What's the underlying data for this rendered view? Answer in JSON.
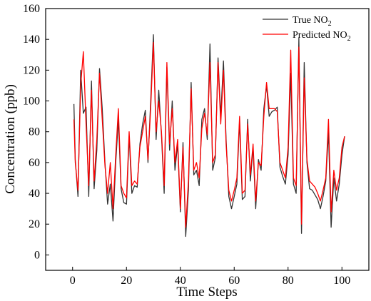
{
  "chart_data": {
    "type": "line",
    "xlabel": "Time Steps",
    "ylabel": "Concentration (ppb)",
    "xlim": [
      -10,
      110
    ],
    "ylim": [
      -10,
      160
    ],
    "xticks": [
      0,
      20,
      40,
      60,
      80,
      100
    ],
    "yticks": [
      0,
      20,
      40,
      60,
      80,
      100,
      120,
      140,
      160
    ],
    "grid": false,
    "legend_position": "top-right",
    "series": [
      {
        "name": "True NO",
        "name_sub": "2",
        "color": "#333333",
        "x": [
          0.5,
          1,
          2,
          3,
          4,
          5,
          6,
          7,
          8,
          9,
          10,
          11,
          12,
          13,
          14,
          15,
          16,
          17,
          18,
          19,
          20,
          21,
          22,
          23,
          24,
          25,
          26,
          27,
          28,
          29,
          30,
          31,
          32,
          33,
          34,
          35,
          36,
          37,
          38,
          39,
          40,
          41,
          42,
          43,
          44,
          45,
          46,
          47,
          48,
          49,
          50,
          51,
          52,
          53,
          54,
          55,
          56,
          57,
          58,
          59,
          60,
          61,
          62,
          63,
          64,
          65,
          66,
          67,
          68,
          69,
          70,
          71,
          72,
          73,
          74,
          75,
          76,
          77,
          78,
          79,
          80,
          81,
          82,
          83,
          84,
          85,
          86,
          87,
          88,
          89,
          90,
          91,
          92,
          93,
          94,
          95,
          96,
          97,
          98,
          99,
          100,
          101
        ],
        "y": [
          98,
          62,
          38,
          120,
          92,
          96,
          38,
          113,
          43,
          68,
          121,
          95,
          60,
          33,
          46,
          22,
          60,
          88,
          43,
          34,
          33,
          77,
          40,
          45,
          44,
          72,
          85,
          94,
          60,
          100,
          143,
          75,
          107,
          78,
          40,
          122,
          68,
          100,
          55,
          72,
          28,
          73,
          12,
          42,
          112,
          52,
          55,
          45,
          88,
          95,
          75,
          137,
          55,
          63,
          128,
          90,
          126,
          75,
          38,
          30,
          38,
          46,
          87,
          36,
          38,
          88,
          48,
          70,
          30,
          62,
          55,
          95,
          110,
          90,
          93,
          94,
          96,
          57,
          51,
          46,
          65,
          118,
          46,
          40,
          141,
          14,
          125,
          60,
          43,
          42,
          39,
          36,
          30,
          38,
          48,
          80,
          18,
          50,
          35,
          46,
          65,
          77
        ],
        "values_approx": true
      },
      {
        "name": "Predicted NO",
        "name_sub": "2",
        "color": "#ff0000",
        "x": [
          0.5,
          1,
          2,
          3,
          4,
          5,
          6,
          7,
          8,
          9,
          10,
          11,
          12,
          13,
          14,
          15,
          16,
          17,
          18,
          19,
          20,
          21,
          22,
          23,
          24,
          25,
          26,
          27,
          28,
          29,
          30,
          31,
          32,
          33,
          34,
          35,
          36,
          37,
          38,
          39,
          40,
          41,
          42,
          43,
          44,
          45,
          46,
          47,
          48,
          49,
          50,
          51,
          52,
          53,
          54,
          55,
          56,
          57,
          58,
          59,
          60,
          61,
          62,
          63,
          64,
          65,
          66,
          67,
          68,
          69,
          70,
          71,
          72,
          73,
          74,
          75,
          76,
          77,
          78,
          79,
          80,
          81,
          82,
          83,
          84,
          85,
          86,
          87,
          88,
          89,
          90,
          91,
          92,
          93,
          94,
          95,
          96,
          97,
          98,
          99,
          100,
          101
        ],
        "y": [
          88,
          60,
          42,
          110,
          132,
          85,
          45,
          107,
          48,
          75,
          118,
          88,
          58,
          40,
          60,
          30,
          65,
          95,
          45,
          40,
          37,
          80,
          45,
          48,
          46,
          70,
          80,
          90,
          62,
          95,
          138,
          80,
          100,
          80,
          45,
          125,
          72,
          95,
          60,
          75,
          30,
          70,
          18,
          48,
          108,
          55,
          60,
          50,
          82,
          92,
          78,
          125,
          60,
          65,
          125,
          85,
          120,
          72,
          42,
          35,
          42,
          50,
          90,
          40,
          42,
          85,
          52,
          72,
          35,
          60,
          58,
          90,
          112,
          95,
          95,
          95,
          93,
          60,
          55,
          50,
          70,
          133,
          50,
          45,
          135,
          20,
          115,
          62,
          48,
          46,
          44,
          40,
          35,
          42,
          50,
          88,
          28,
          55,
          42,
          50,
          70,
          77
        ],
        "values_approx": true
      }
    ]
  }
}
